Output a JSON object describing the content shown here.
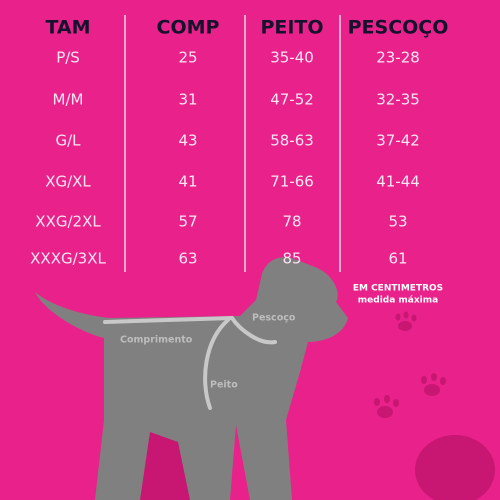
{
  "table": {
    "header": [
      "TAM",
      "COMP",
      "PEITO",
      "PESCOÇO"
    ],
    "rows": [
      [
        "P/S",
        "25",
        "35-40",
        "23-28"
      ],
      [
        "M/M",
        "31",
        "47-52",
        "32-35"
      ],
      [
        "G/L",
        "43",
        "58-63",
        "37-42"
      ],
      [
        "XG/XL",
        "41",
        "71-66",
        "41-44"
      ],
      [
        "XXG/2XL",
        "57",
        "78",
        "53"
      ],
      [
        "XXXG/3XL",
        "63",
        "85",
        "61"
      ]
    ]
  },
  "note": {
    "line1": "EM CENTIMETROS",
    "line2": "medida máxima"
  },
  "dog_labels": {
    "neck": "Pescoço",
    "length": "Comprimento",
    "chest": "Peito"
  }
}
